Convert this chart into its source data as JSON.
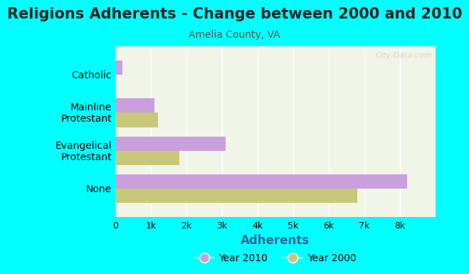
{
  "title": "Religions Adherents - Change between 2000 and 2010",
  "subtitle": "Amelia County, VA",
  "categories": [
    "None",
    "Evangelical\nProtestant",
    "Mainline\nProtestant",
    "Catholic"
  ],
  "values_2010": [
    8200,
    3100,
    1100,
    200
  ],
  "values_2000": [
    6800,
    1800,
    1200,
    0
  ],
  "color_2010": "#c9a0dc",
  "color_2000": "#c8c87a",
  "xlabel": "Adherents",
  "xlim": [
    0,
    9000
  ],
  "xticks": [
    0,
    1000,
    2000,
    3000,
    4000,
    5000,
    6000,
    7000,
    8000
  ],
  "xticklabels": [
    "0",
    "1k",
    "2k",
    "3k",
    "4k",
    "5k",
    "6k",
    "7k",
    "8k"
  ],
  "background_color": "#00ffff",
  "plot_bg_color": "#f0f5e8",
  "title_fontsize": 15,
  "subtitle_fontsize": 10,
  "xlabel_fontsize": 12,
  "watermark": "City-Data.com",
  "ytick_labels_display": [
    "None",
    "Evangelical\nProtestant",
    "Mainline\nProtestant",
    "Catholic"
  ]
}
